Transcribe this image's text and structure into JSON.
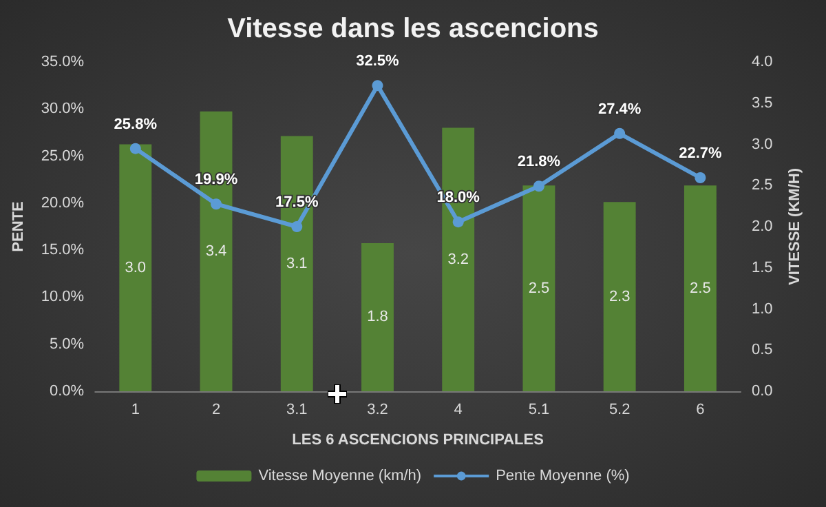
{
  "chart_data": {
    "type": "bar",
    "title": "Vitesse dans les ascencions",
    "xlabel": "LES 6 ASCENCIONS PRINCIPALES",
    "ylabel": "PENTE",
    "y2label": "VITESSE (KM/H)",
    "categories": [
      "1",
      "2",
      "3.1",
      "3.2",
      "4",
      "5.1",
      "5.2",
      "6"
    ],
    "series": [
      {
        "name": "Vitesse Moyenne (km/h)",
        "axis": "y2",
        "color": "#548235",
        "values": [
          3.0,
          3.4,
          3.1,
          1.8,
          3.2,
          2.5,
          2.3,
          2.5
        ],
        "value_labels": [
          "3.0",
          "3.4",
          "3.1",
          "1.8",
          "3.2",
          "2.5",
          "2.3",
          "2.5"
        ]
      },
      {
        "name": "Pente Moyenne (%)",
        "type": "line",
        "axis": "y",
        "color": "#5b9bd5",
        "marker": "circle",
        "values": [
          25.8,
          19.9,
          17.5,
          32.5,
          18.0,
          21.8,
          27.4,
          22.7
        ],
        "value_labels": [
          "25.8%",
          "19.9%",
          "17.5%",
          "32.5%",
          "18.0%",
          "21.8%",
          "27.4%",
          "22.7%"
        ]
      }
    ],
    "ylim": [
      0,
      35
    ],
    "yticks": [
      {
        "value": 0,
        "label": "0.0%"
      },
      {
        "value": 5,
        "label": "5.0%"
      },
      {
        "value": 10,
        "label": "10.0%"
      },
      {
        "value": 15,
        "label": "15.0%"
      },
      {
        "value": 20,
        "label": "20.0%"
      },
      {
        "value": 25,
        "label": "25.0%"
      },
      {
        "value": 30,
        "label": "30.0%"
      },
      {
        "value": 35,
        "label": "35.0%"
      }
    ],
    "y2lim": [
      0,
      4
    ],
    "y2ticks": [
      {
        "value": 0,
        "label": "0.0"
      },
      {
        "value": 0.5,
        "label": "0.5"
      },
      {
        "value": 1,
        "label": "1.0"
      },
      {
        "value": 1.5,
        "label": "1.5"
      },
      {
        "value": 2,
        "label": "2.0"
      },
      {
        "value": 2.5,
        "label": "2.5"
      },
      {
        "value": 3,
        "label": "3.0"
      },
      {
        "value": 3.5,
        "label": "3.5"
      },
      {
        "value": 4,
        "label": "4.0"
      }
    ],
    "grid": false,
    "legend": "bottom"
  }
}
